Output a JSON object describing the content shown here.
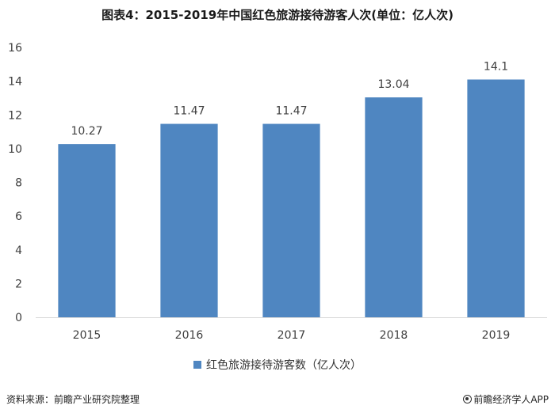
{
  "title": "图表4：2015-2019年中国红色旅游接待游客人次(单位：亿人次)",
  "source": "资料来源：前瞻产业研究院整理",
  "brand": "前瞻经济学人APP",
  "colors": {
    "bar": "#4f86c1",
    "axis": "#d9d9d9",
    "text": "#404040"
  },
  "chart_data": {
    "type": "bar",
    "categories": [
      "2015",
      "2016",
      "2017",
      "2018",
      "2019"
    ],
    "series": [
      {
        "name": "红色旅游接待游客数（亿人次）",
        "values": [
          10.27,
          11.47,
          11.47,
          13.04,
          14.1
        ]
      }
    ],
    "data_labels": [
      "10.27",
      "11.47",
      "11.47",
      "13.04",
      "14.1"
    ],
    "y_ticks": [
      "0",
      "2",
      "4",
      "6",
      "8",
      "10",
      "12",
      "14",
      "16"
    ],
    "ylim": [
      0,
      16
    ],
    "grid": false,
    "legend": "bottom"
  }
}
